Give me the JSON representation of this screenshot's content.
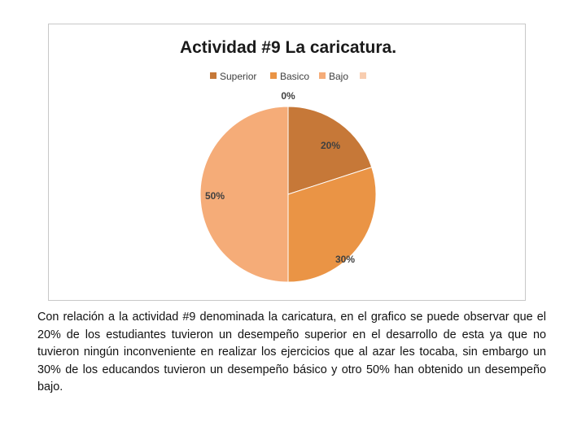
{
  "chart_data": {
    "type": "pie",
    "title": "Actividad #9 La caricatura.",
    "categories": [
      "Superior",
      "Basico",
      "Bajo",
      ""
    ],
    "values": [
      20,
      30,
      50,
      0
    ],
    "labels": [
      "20%",
      "30%",
      "50%",
      "0%"
    ],
    "colors": [
      "#c67838",
      "#ea9445",
      "#f5ac78",
      "#f8cdb0"
    ],
    "legend_position": "top"
  },
  "caption": "Con relación a la actividad #9 denominada la caricatura, en el grafico se puede observar que el 20% de los estudiantes tuvieron un desempeño superior en el desarrollo de esta ya que no tuvieron ningún inconveniente en realizar los ejercicios que al azar les tocaba, sin embargo un 30% de los educandos tuvieron un desempeño básico y otro 50% han obtenido un desempeño bajo."
}
